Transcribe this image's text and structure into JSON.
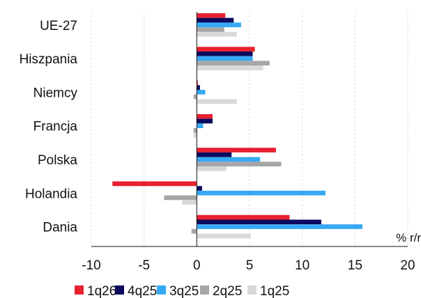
{
  "chart_data": {
    "type": "bar",
    "orientation": "horizontal",
    "categories": [
      "UE-27",
      "Hiszpania",
      "Niemcy",
      "Francja",
      "Polska",
      "Holandia",
      "Dania"
    ],
    "series": [
      {
        "name": "1q26",
        "color": "#e8202f",
        "values": [
          2.7,
          5.5,
          0.1,
          1.5,
          7.5,
          -8.0,
          8.8
        ]
      },
      {
        "name": "4q25",
        "color": "#0a0a5e",
        "values": [
          3.5,
          5.3,
          0.3,
          1.5,
          3.3,
          0.5,
          11.8
        ]
      },
      {
        "name": "3q25",
        "color": "#36a9f5",
        "values": [
          4.2,
          5.3,
          0.8,
          0.6,
          6.0,
          12.2,
          15.7
        ]
      },
      {
        "name": "2q25",
        "color": "#a6a6a6",
        "values": [
          2.6,
          6.9,
          -0.3,
          -0.3,
          8.0,
          -3.1,
          -0.5
        ]
      },
      {
        "name": "1q25",
        "color": "#d9d9d9",
        "values": [
          3.8,
          6.3,
          3.8,
          -0.3,
          2.8,
          -1.4,
          5.1
        ]
      }
    ],
    "xlim": [
      -10,
      20
    ],
    "xticks": [
      -10,
      -5,
      0,
      5,
      10,
      15,
      20
    ],
    "xtick_labels": [
      "-10",
      "-5",
      "0",
      "5",
      "10",
      "15",
      "20"
    ],
    "unit_label": "% r/r",
    "grid": "vertical",
    "legend_position": "bottom"
  }
}
